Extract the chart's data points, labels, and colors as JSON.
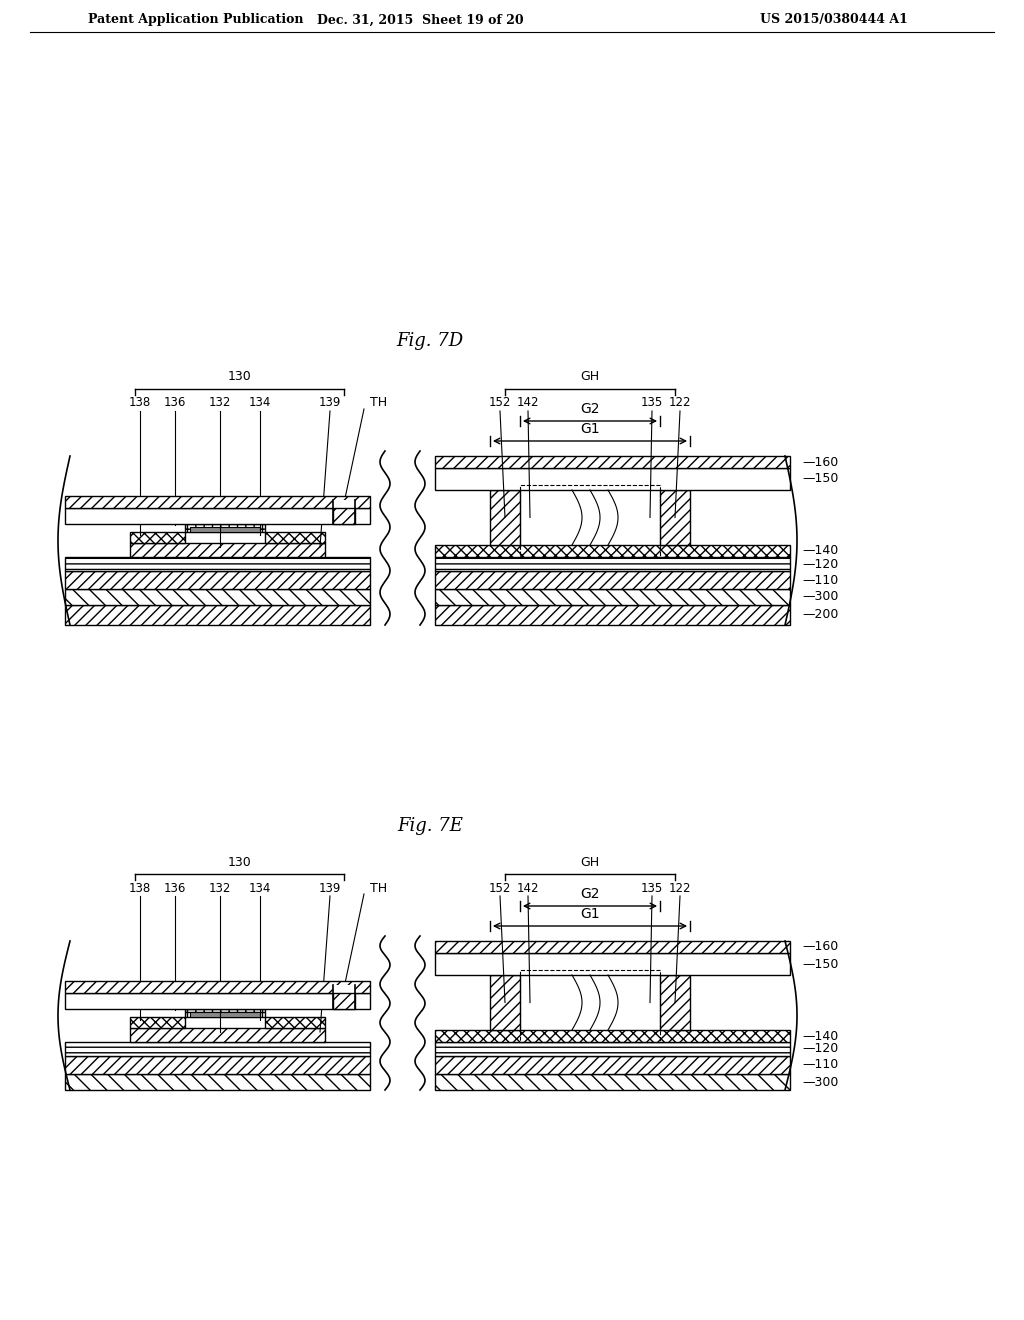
{
  "header_left": "Patent Application Publication",
  "header_mid": "Dec. 31, 2015  Sheet 19 of 20",
  "header_right": "US 2015/0380444 A1",
  "fig1_label": "Fig. 7D",
  "fig2_label": "Fig. 7E",
  "background": "#ffffff"
}
